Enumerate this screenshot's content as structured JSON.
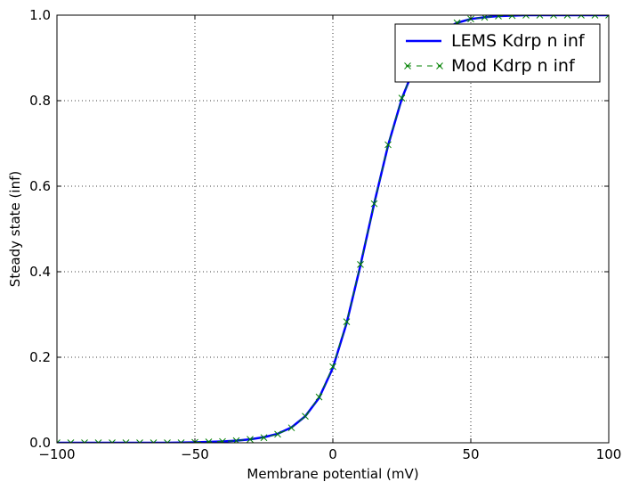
{
  "chart_data": {
    "type": "line",
    "xlabel": "Membrane potential (mV)",
    "ylabel": "Steady state (inf)",
    "xlim": [
      -100,
      100
    ],
    "ylim": [
      0.0,
      1.0
    ],
    "xticks": [
      -100,
      -50,
      0,
      50,
      100
    ],
    "xtick_labels": [
      "−100",
      "−50",
      "0",
      "50",
      "100"
    ],
    "yticks": [
      0.0,
      0.2,
      0.4,
      0.6,
      0.8,
      1.0
    ],
    "ytick_labels": [
      "0.0",
      "0.2",
      "0.4",
      "0.6",
      "0.8",
      "1.0"
    ],
    "grid": true,
    "legend_position": "top-right",
    "series": [
      {
        "name": "LEMS Kdrp n inf",
        "style": "solid line",
        "color": "#0000ff",
        "x": [
          -100,
          -90,
          -80,
          -70,
          -60,
          -50,
          -45,
          -40,
          -35,
          -30,
          -25,
          -20,
          -15,
          -10,
          -5,
          0,
          5,
          10,
          15,
          20,
          25,
          30,
          35,
          40,
          45,
          50,
          55,
          60,
          65,
          70,
          80,
          90,
          100
        ],
        "y": [
          0.0,
          0.0,
          0.0,
          0.0,
          0.0,
          0.001,
          0.002,
          0.003,
          0.005,
          0.008,
          0.013,
          0.021,
          0.036,
          0.062,
          0.105,
          0.175,
          0.28,
          0.415,
          0.56,
          0.695,
          0.805,
          0.885,
          0.935,
          0.965,
          0.982,
          0.991,
          0.995,
          0.998,
          0.999,
          1.0,
          1.0,
          1.0,
          1.0
        ]
      },
      {
        "name": "Mod Kdrp n inf",
        "style": "dashed line with x markers",
        "color": "#008000",
        "x": [
          -100,
          -95,
          -90,
          -85,
          -80,
          -75,
          -70,
          -65,
          -60,
          -55,
          -50,
          -45,
          -40,
          -35,
          -30,
          -25,
          -20,
          -15,
          -10,
          -5,
          0,
          5,
          10,
          15,
          20,
          25,
          30,
          35,
          40,
          45,
          50,
          55,
          60,
          65,
          70,
          75,
          80,
          85,
          90,
          95,
          100
        ],
        "y": [
          0.0,
          0.0,
          0.0,
          0.0,
          0.0,
          0.0,
          0.0,
          0.0,
          0.0,
          0.0,
          0.001,
          0.002,
          0.003,
          0.005,
          0.008,
          0.012,
          0.02,
          0.035,
          0.062,
          0.107,
          0.178,
          0.283,
          0.417,
          0.559,
          0.697,
          0.806,
          0.885,
          0.935,
          0.965,
          0.982,
          0.991,
          0.995,
          0.998,
          0.999,
          1.0,
          1.0,
          1.0,
          1.0,
          1.0,
          1.0,
          1.0
        ]
      }
    ]
  }
}
